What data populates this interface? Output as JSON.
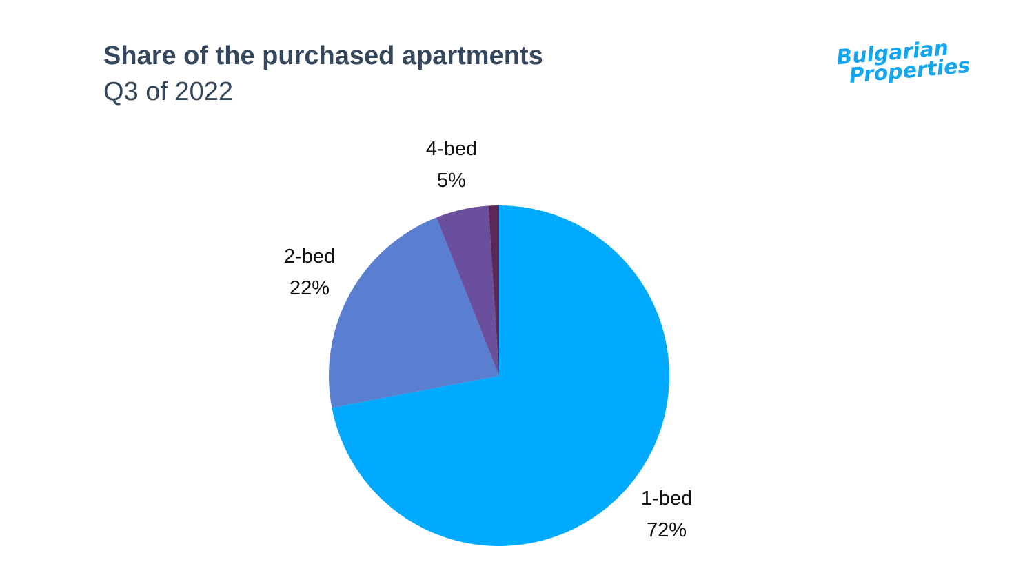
{
  "header": {
    "title": "Share of the purchased apartments",
    "subtitle": "Q3 of 2022"
  },
  "logo": {
    "line1": "Bulgarian",
    "line2": "Properties",
    "color": "#13a6ef"
  },
  "chart_data": {
    "type": "pie",
    "title": "Share of the purchased apartments",
    "subtitle": "Q3 of 2022",
    "start": "top",
    "direction": "clockwise",
    "slices": [
      {
        "label": "1-bed",
        "value": 72,
        "display": "72%",
        "color": "#00aaff"
      },
      {
        "label": "2-bed",
        "value": 22,
        "display": "22%",
        "color": "#5b7fd0"
      },
      {
        "label": "4-bed",
        "value": 5,
        "display": "5%",
        "color": "#6a4f9c"
      },
      {
        "label": "",
        "value": 1,
        "display": "",
        "color": "#5c2858"
      }
    ]
  }
}
